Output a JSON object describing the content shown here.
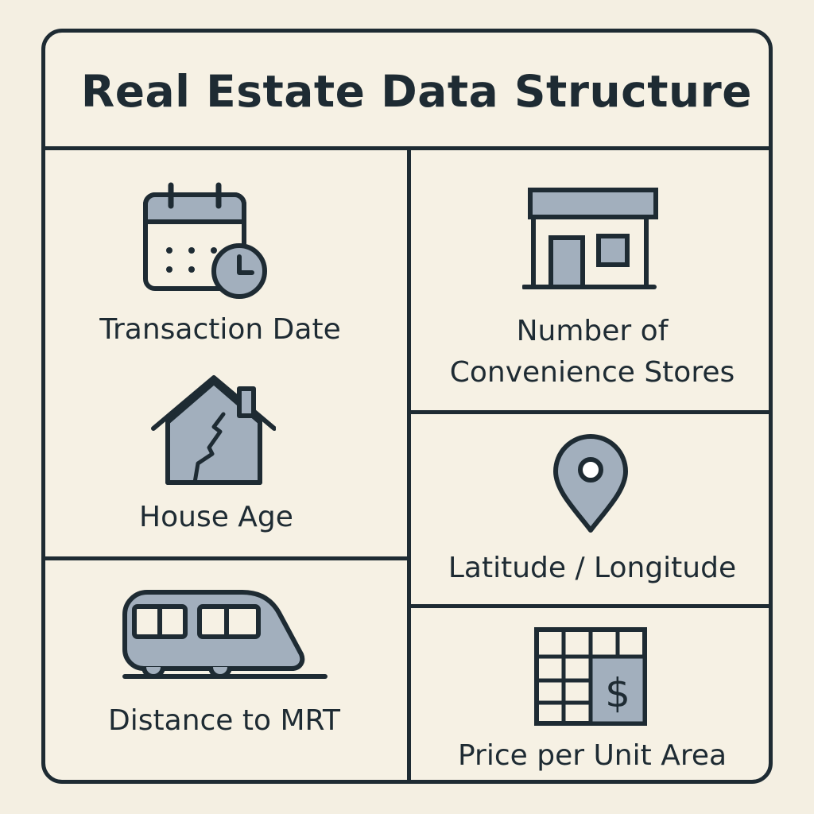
{
  "title": "Real Estate Data Structure",
  "colors": {
    "background": "#f4efe2",
    "outline": "#1e2b33",
    "icon_fill": "#a2afbd"
  },
  "cells": {
    "transaction_date": {
      "label": "Transaction Date",
      "icon": "calendar-clock-icon"
    },
    "house_age": {
      "label": "House Age",
      "icon": "cracked-house-icon"
    },
    "distance_mrt": {
      "label": "Distance to MRT",
      "icon": "train-icon"
    },
    "convenience_stores": {
      "label_line1": "Number of",
      "label_line2": "Convenience Stores",
      "icon": "store-icon"
    },
    "lat_long": {
      "label": "Latitude / Longitude",
      "icon": "map-pin-icon"
    },
    "price_unit_area": {
      "label": "Price per Unit Area",
      "icon": "price-grid-icon",
      "currency_symbol": "$"
    }
  }
}
